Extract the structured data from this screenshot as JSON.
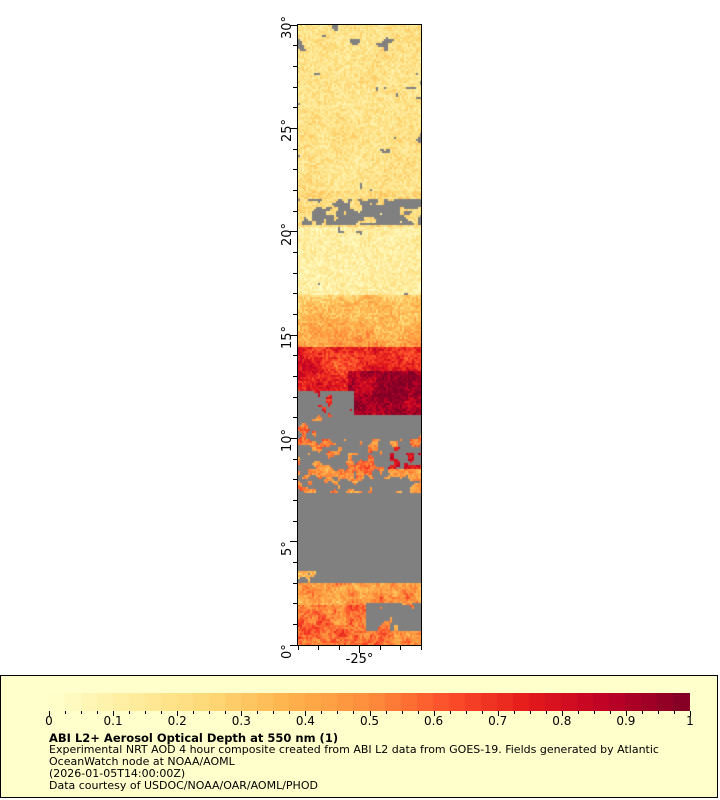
{
  "map": {
    "lat_range": [
      0,
      30
    ],
    "lon_range": [
      -28,
      -22
    ],
    "lat_labels": [
      "0°",
      "5°",
      "10°",
      "15°",
      "20°",
      "25°",
      "30°"
    ],
    "lat_values": [
      0,
      5,
      10,
      15,
      20,
      25,
      30
    ],
    "lon_labels": [
      "-25°"
    ],
    "lon_values": [
      -25
    ],
    "no_data_color": "#808080"
  },
  "legend": {
    "colorbar_labels": [
      "0",
      "0.1",
      "0.2",
      "0.3",
      "0.4",
      "0.5",
      "0.6",
      "0.7",
      "0.8",
      "0.9",
      "1"
    ],
    "colorbar_range": [
      0,
      1
    ],
    "colormap": [
      "#ffffcc",
      "#ffeda0",
      "#fed976",
      "#feb24c",
      "#fd8d3c",
      "#fc4e2a",
      "#e31a1c",
      "#bd0026",
      "#800026"
    ],
    "title": "ABI L2+ Aerosol Optical Depth at 550 nm (1)",
    "line1": "Experimental NRT AOD 4 hour composite created from ABI L2 data from GOES-19. Fields generated by Atlantic",
    "line2": "OceanWatch node at NOAA/AOML",
    "line3": "(2026-01-05T14:00:00Z)",
    "line4": "Data courtesy of USDOC/NOAA/OAR/AOML/PHOD"
  }
}
